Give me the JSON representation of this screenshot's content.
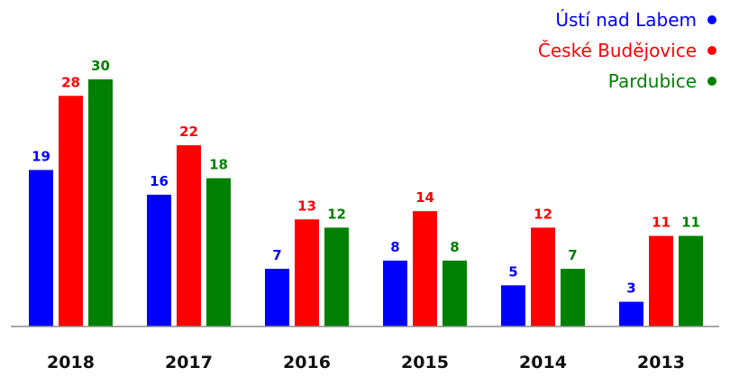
{
  "chart_data": {
    "type": "bar",
    "title": "",
    "xlabel": "",
    "ylabel": "",
    "categories": [
      "2018",
      "2017",
      "2016",
      "2015",
      "2014",
      "2013"
    ],
    "series": [
      {
        "name": "Ústí nad Labem",
        "color": "#0000ff",
        "values": [
          19,
          16,
          7,
          8,
          5,
          3
        ]
      },
      {
        "name": "České Budějovice",
        "color": "#ff0000",
        "values": [
          28,
          22,
          13,
          14,
          12,
          11
        ]
      },
      {
        "name": "Pardubice",
        "color": "#008000",
        "values": [
          30,
          18,
          12,
          8,
          7,
          11
        ]
      }
    ],
    "ylim": [
      0,
      30
    ],
    "grid": false,
    "legend": "top-right",
    "data_labels": true
  }
}
